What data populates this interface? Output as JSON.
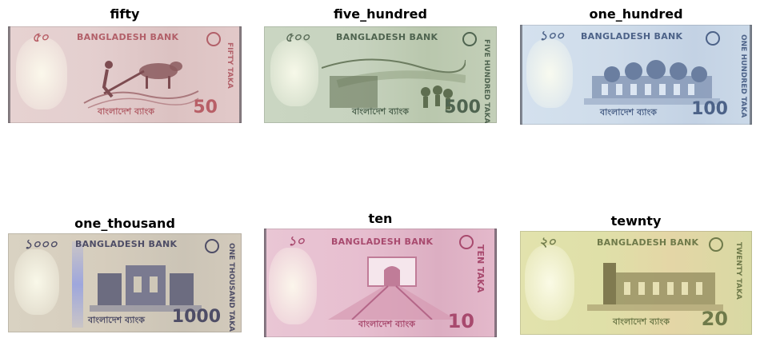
{
  "panels": [
    {
      "title": "fifty",
      "note": {
        "bank_name": "BANGLADESH BANK",
        "value": "50",
        "top_value": "৫০",
        "side_text": "FIFTY TAKA",
        "bottom_script": "বাংলাদেশ ব্যাংক",
        "colors": {
          "base": "#e4cfcf",
          "accent": "#b85f67",
          "scene": "#8b5a5e"
        }
      }
    },
    {
      "title": "five_hundred",
      "note": {
        "bank_name": "BANGLADESH BANK",
        "value": "500",
        "top_value": "৫০০",
        "side_text": "FIVE HUNDRED TAKA",
        "bottom_script": "বাংলাদেশ ব্যাংক",
        "colors": {
          "base": "#c7d3bf",
          "accent": "#5c6e5a",
          "scene": "#5e6e50"
        }
      }
    },
    {
      "title": "one_hundred",
      "note": {
        "bank_name": "BANGLADESH BANK",
        "value": "100",
        "top_value": "১০০",
        "side_text": "ONE HUNDRED TAKA",
        "bottom_script": "বাংলাদেশ ব্যাংক",
        "colors": {
          "base": "#cfdcea",
          "accent": "#4c6288",
          "scene": "#6a7ea0"
        }
      }
    },
    {
      "title": "one_thousand",
      "note": {
        "bank_name": "BANGLADESH BANK",
        "value": "1000",
        "top_value": "১০০০",
        "side_text": "ONE THOUSAND TAKA",
        "bottom_script": "বাংলাদেশ ব্যাংক",
        "colors": {
          "base": "#d6cdbd",
          "accent": "#4e4d66",
          "scene": "#6c6c80"
        }
      }
    },
    {
      "title": "ten",
      "note": {
        "bank_name": "BANGLADESH BANK",
        "value": "10",
        "top_value": "১০",
        "side_text": "TEN TAKA",
        "bottom_script": "বাংলাদেশ ব্যাংক",
        "colors": {
          "base": "#e7bfd0",
          "accent": "#a84a6e",
          "scene": "#c07c98"
        }
      }
    },
    {
      "title": "tewnty",
      "note": {
        "bank_name": "BANGLADESH BANK",
        "value": "20",
        "top_value": "২০",
        "side_text": "TWENTY TAKA",
        "bottom_script": "বাংলাদেশ ব্যাংক",
        "colors": {
          "base": "#dfe0a8",
          "accent": "#6f7a4a",
          "scene": "#807a50"
        }
      }
    }
  ]
}
